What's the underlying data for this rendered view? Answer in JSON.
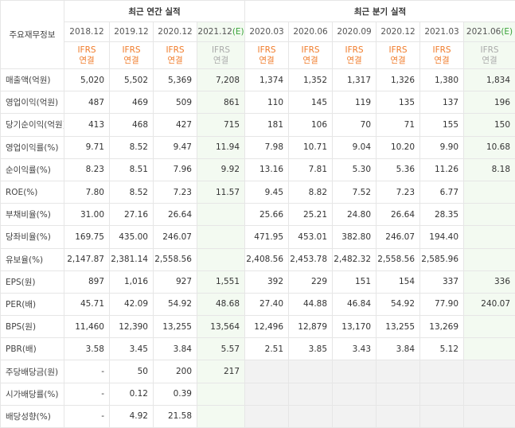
{
  "header": {
    "corner": "주요재무정보",
    "annual_group": "최근 연간 실적",
    "quarter_group": "최근 분기 실적",
    "periods": [
      {
        "date": "2018.12"
      },
      {
        "date": "2019.12"
      },
      {
        "date": "2020.12"
      },
      {
        "date": "2021.12",
        "est": "(E)"
      },
      {
        "date": "2020.03"
      },
      {
        "date": "2020.06"
      },
      {
        "date": "2020.09"
      },
      {
        "date": "2020.12"
      },
      {
        "date": "2021.03"
      },
      {
        "date": "2021.06",
        "est": "(E)"
      }
    ],
    "ifrs": {
      "top": "IFRS",
      "bottom": "연결"
    }
  },
  "table": {
    "rows": [
      {
        "label": "매출액(억원)",
        "cells": [
          "5,020",
          "5,502",
          "5,369",
          "7,208",
          "1,374",
          "1,352",
          "1,317",
          "1,326",
          "1,380",
          "1,834"
        ]
      },
      {
        "label": "영업이익(억원)",
        "cells": [
          "487",
          "469",
          "509",
          "861",
          "110",
          "145",
          "119",
          "135",
          "137",
          "196"
        ]
      },
      {
        "label": "당기순이익(억원)",
        "cells": [
          "413",
          "468",
          "427",
          "715",
          "181",
          "106",
          "70",
          "71",
          "155",
          "150"
        ]
      },
      {
        "label": "영업이익률(%)",
        "cells": [
          "9.71",
          "8.52",
          "9.47",
          "11.94",
          "7.98",
          "10.71",
          "9.04",
          "10.20",
          "9.90",
          "10.68"
        ]
      },
      {
        "label": "순이익률(%)",
        "cells": [
          "8.23",
          "8.51",
          "7.96",
          "9.92",
          "13.16",
          "7.81",
          "5.30",
          "5.36",
          "11.26",
          "8.18"
        ]
      },
      {
        "label": "ROE(%)",
        "cells": [
          "7.80",
          "8.52",
          "7.23",
          "11.57",
          "9.45",
          "8.82",
          "7.52",
          "7.23",
          "6.77",
          null
        ]
      },
      {
        "label": "부채비율(%)",
        "cells": [
          "31.00",
          "27.16",
          "26.64",
          null,
          "25.66",
          "25.21",
          "24.80",
          "26.64",
          "28.35",
          null
        ]
      },
      {
        "label": "당좌비율(%)",
        "cells": [
          "169.75",
          "435.00",
          "246.07",
          null,
          "471.95",
          "453.01",
          "382.80",
          "246.07",
          "194.40",
          null
        ]
      },
      {
        "label": "유보율(%)",
        "cells": [
          "2,147.87",
          "2,381.14",
          "2,558.56",
          null,
          "2,408.56",
          "2,453.78",
          "2,482.32",
          "2,558.56",
          "2,585.96",
          null
        ]
      },
      {
        "label": "EPS(원)",
        "cells": [
          "897",
          "1,016",
          "927",
          "1,551",
          "392",
          "229",
          "151",
          "154",
          "337",
          "336"
        ]
      },
      {
        "label": "PER(배)",
        "cells": [
          "45.71",
          "42.09",
          "54.92",
          "48.68",
          "27.40",
          "44.88",
          "46.84",
          "54.92",
          "77.90",
          "240.07"
        ]
      },
      {
        "label": "BPS(원)",
        "cells": [
          "11,460",
          "12,390",
          "13,255",
          "13,564",
          "12,496",
          "12,879",
          "13,170",
          "13,255",
          "13,269",
          null
        ]
      },
      {
        "label": "PBR(배)",
        "cells": [
          "3.58",
          "3.45",
          "3.84",
          "5.57",
          "2.51",
          "3.85",
          "3.43",
          "3.84",
          "5.12",
          null
        ]
      },
      {
        "label": "주당배당금(원)",
        "cells": [
          "-",
          "50",
          "200",
          "217",
          null,
          null,
          null,
          null,
          null,
          null
        ]
      },
      {
        "label": "시가배당률(%)",
        "cells": [
          "-",
          "0.12",
          "0.39",
          null,
          null,
          null,
          null,
          null,
          null,
          null
        ]
      },
      {
        "label": "배당성향(%)",
        "cells": [
          "-",
          "4.92",
          "21.58",
          null,
          null,
          null,
          null,
          null,
          null,
          null
        ]
      }
    ]
  }
}
